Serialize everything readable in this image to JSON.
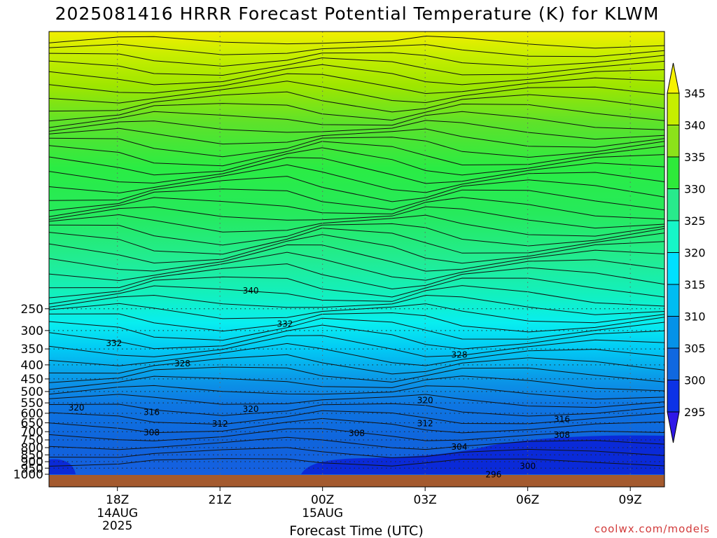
{
  "chart_data": {
    "type": "contour",
    "title": "2025081416 HRRR Forecast Potential Temperature (K) for KLWM",
    "xlabel": "Forecast Time (UTC)",
    "ylabel": "",
    "y_scale": "log-pressure (inverted)",
    "ylim": [
      1000,
      200
    ],
    "pressure_levels": [
      250,
      300,
      350,
      400,
      450,
      500,
      550,
      600,
      650,
      700,
      750,
      800,
      850,
      900,
      950,
      1000
    ],
    "time_ticks": [
      {
        "label": "18Z",
        "sub1": "14AUG",
        "sub2": "2025",
        "hour": 2
      },
      {
        "label": "21Z",
        "sub1": "",
        "sub2": "",
        "hour": 5
      },
      {
        "label": "00Z",
        "sub1": "15AUG",
        "sub2": "",
        "hour": 8
      },
      {
        "label": "03Z",
        "sub1": "",
        "sub2": "",
        "hour": 11
      },
      {
        "label": "06Z",
        "sub1": "",
        "sub2": "",
        "hour": 14
      },
      {
        "label": "09Z",
        "sub1": "",
        "sub2": "",
        "hour": 17
      }
    ],
    "forecast_hours": [
      0,
      18
    ],
    "fill_levels": [
      295,
      300,
      305,
      310,
      315,
      320,
      325,
      330,
      335,
      340,
      345
    ],
    "colorbar": [
      {
        "label": "345",
        "color": "#f7f200"
      },
      {
        "label": "340",
        "color": "#c6ee00"
      },
      {
        "label": "335",
        "color": "#8ce21a"
      },
      {
        "label": "330",
        "color": "#2eea3a"
      },
      {
        "label": "325",
        "color": "#28ea8c"
      },
      {
        "label": "320",
        "color": "#16f6c8"
      },
      {
        "label": "315",
        "color": "#00e0ff"
      },
      {
        "label": "310",
        "color": "#00bcf2"
      },
      {
        "label": "305",
        "color": "#0592e8"
      },
      {
        "label": "300",
        "color": "#1068e0"
      },
      {
        "label": "295",
        "color": "#0c32e6"
      }
    ],
    "colorbar_ends": {
      "top": "#f7f200",
      "bottom": "#3018e8"
    },
    "contour_interval": 2,
    "contour_labels": [
      {
        "text": "340",
        "hour": 5.9,
        "p": 215
      },
      {
        "text": "332",
        "hour": 6.9,
        "p": 284
      },
      {
        "text": "332",
        "hour": 1.9,
        "p": 334
      },
      {
        "text": "328",
        "hour": 12.0,
        "p": 368
      },
      {
        "text": "328",
        "hour": 3.9,
        "p": 396
      },
      {
        "text": "320",
        "hour": 11.0,
        "p": 538
      },
      {
        "text": "320",
        "hour": 0.8,
        "p": 572
      },
      {
        "text": "320",
        "hour": 5.9,
        "p": 580
      },
      {
        "text": "316",
        "hour": 3.0,
        "p": 595
      },
      {
        "text": "316",
        "hour": 15.0,
        "p": 630
      },
      {
        "text": "312",
        "hour": 5.0,
        "p": 655
      },
      {
        "text": "312",
        "hour": 11.0,
        "p": 653
      },
      {
        "text": "308",
        "hour": 3.0,
        "p": 705
      },
      {
        "text": "308",
        "hour": 9.0,
        "p": 710
      },
      {
        "text": "308",
        "hour": 15.0,
        "p": 720
      },
      {
        "text": "304",
        "hour": 12.0,
        "p": 795
      },
      {
        "text": "300",
        "hour": 14.0,
        "p": 935
      },
      {
        "text": "296",
        "hour": 13.0,
        "p": 1003
      }
    ],
    "ground_color": "#a45a2e",
    "grid": true,
    "credit": "coolwx.com/models"
  }
}
